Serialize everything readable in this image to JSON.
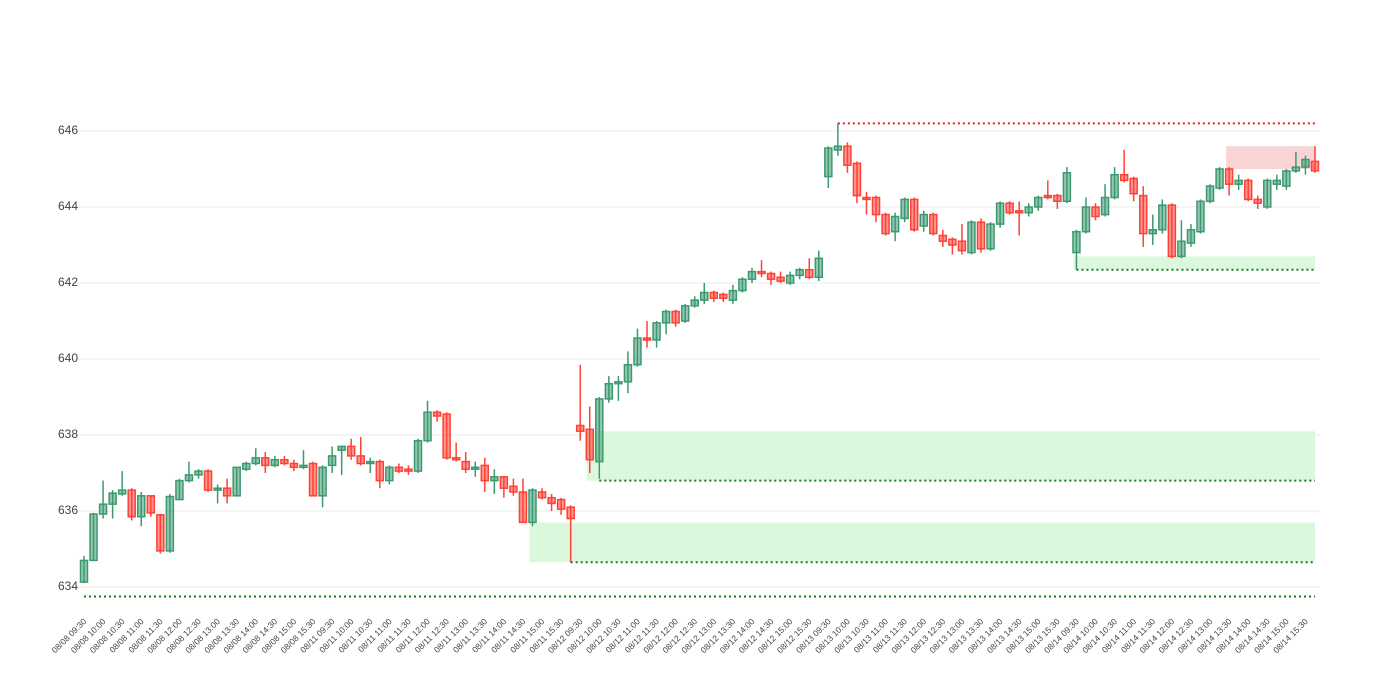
{
  "chart_data": {
    "type": "candlestick",
    "increasing_color": "#3d9970",
    "decreasing_color": "#ff4136",
    "grid": true,
    "ylim": [
      633.3,
      646.8
    ],
    "yticks": [
      634,
      636,
      638,
      640,
      642,
      644,
      646
    ],
    "categories": [
      "08/08 09:30",
      null,
      "08/08 10:00",
      null,
      "08/08 10:30",
      null,
      "08/08 11:00",
      null,
      "08/08 11:30",
      null,
      "08/08 12:00",
      null,
      "08/08 12:30",
      null,
      "08/08 13:00",
      null,
      "08/08 13:30",
      null,
      "08/08 14:00",
      null,
      "08/08 14:30",
      null,
      "08/08 15:00",
      null,
      "08/08 15:30",
      null,
      "08/11 09:30",
      null,
      "08/11 10:00",
      null,
      "08/11 10:30",
      null,
      "08/11 11:00",
      null,
      "08/11 11:30",
      null,
      "08/11 12:00",
      null,
      "08/11 12:30",
      null,
      "08/11 13:00",
      null,
      "08/11 13:30",
      null,
      "08/11 14:00",
      null,
      "08/11 14:30",
      null,
      "08/11 15:00",
      null,
      "08/11 15:30",
      null,
      "08/12 09:30",
      null,
      "08/12 10:00",
      null,
      "08/12 10:30",
      null,
      "08/12 11:00",
      null,
      "08/12 11:30",
      null,
      "08/12 12:00",
      null,
      "08/12 12:30",
      null,
      "08/12 13:00",
      null,
      "08/12 13:30",
      null,
      "08/12 14:00",
      null,
      "08/12 14:30",
      null,
      "08/12 15:00",
      null,
      "08/12 15:30",
      null,
      "08/13 09:30",
      null,
      "08/13 10:00",
      null,
      "08/13 10:30",
      null,
      "08/13 11:00",
      null,
      "08/13 11:30",
      null,
      "08/13 12:00",
      null,
      "08/13 12:30",
      null,
      "08/13 13:00",
      null,
      "08/13 13:30",
      null,
      "08/13 14:00",
      null,
      "08/13 14:30",
      null,
      "08/13 15:00",
      null,
      "08/13 15:30",
      null,
      "08/14 09:30",
      null,
      "08/14 10:00",
      null,
      "08/14 10:30",
      null,
      "08/14 11:00",
      null,
      "08/14 11:30",
      null,
      "08/14 12:00",
      null,
      "08/14 12:30",
      null,
      "08/14 13:00",
      null,
      "08/14 13:30",
      null,
      "08/14 14:00",
      null,
      "08/14 14:30",
      null,
      "08/14 15:00",
      null,
      "08/14 15:30",
      null
    ],
    "open": [
      634.13,
      634.7,
      635.92,
      636.18,
      636.45,
      636.55,
      635.85,
      636.4,
      635.9,
      634.95,
      636.3,
      636.8,
      636.95,
      637.05,
      636.55,
      636.6,
      636.4,
      637.1,
      637.25,
      637.4,
      637.2,
      637.35,
      637.25,
      637.15,
      637.25,
      636.4,
      637.2,
      637.6,
      637.7,
      637.45,
      637.25,
      637.3,
      636.8,
      637.15,
      637.1,
      637.05,
      637.85,
      638.6,
      638.55,
      637.4,
      637.3,
      637.1,
      637.2,
      636.8,
      636.9,
      636.65,
      636.5,
      635.7,
      636.5,
      636.35,
      636.3,
      636.1,
      638.25,
      638.15,
      637.3,
      638.95,
      639.35,
      639.4,
      639.85,
      640.55,
      640.5,
      640.95,
      641.25,
      641.0,
      641.4,
      641.55,
      641.75,
      641.7,
      641.55,
      641.8,
      642.1,
      642.3,
      642.25,
      642.15,
      642.0,
      642.2,
      642.35,
      642.15,
      644.8,
      645.5,
      645.6,
      645.15,
      644.25,
      644.25,
      643.8,
      643.35,
      643.7,
      644.2,
      643.5,
      643.8,
      643.25,
      643.15,
      643.1,
      642.8,
      643.6,
      642.9,
      643.55,
      644.1,
      643.9,
      643.85,
      644.0,
      644.3,
      644.3,
      644.15,
      642.8,
      643.35,
      644.0,
      643.8,
      644.25,
      644.85,
      644.75,
      644.3,
      643.3,
      643.4,
      644.05,
      642.7,
      643.05,
      643.35,
      644.15,
      644.5,
      645.0,
      644.6,
      644.7,
      644.2,
      644.0,
      644.6,
      644.55,
      644.95,
      645.05,
      645.2
    ],
    "high": [
      634.82,
      635.95,
      636.8,
      636.55,
      637.05,
      636.6,
      636.5,
      636.4,
      635.92,
      636.45,
      636.85,
      637.3,
      637.1,
      637.1,
      636.7,
      636.85,
      637.15,
      637.3,
      637.65,
      637.55,
      637.45,
      637.45,
      637.35,
      637.6,
      637.3,
      637.2,
      637.7,
      637.7,
      637.9,
      637.95,
      637.4,
      637.35,
      637.2,
      637.25,
      637.2,
      637.9,
      638.9,
      638.65,
      638.6,
      637.8,
      637.55,
      637.3,
      637.4,
      637.1,
      636.9,
      636.85,
      636.85,
      636.6,
      636.6,
      636.45,
      636.35,
      636.15,
      639.85,
      638.75,
      639.0,
      639.55,
      639.55,
      640.2,
      640.8,
      641.0,
      641.0,
      641.3,
      641.3,
      641.45,
      641.65,
      642.0,
      641.8,
      641.75,
      641.95,
      642.15,
      642.4,
      642.6,
      642.3,
      642.3,
      642.3,
      642.4,
      642.65,
      642.85,
      645.6,
      646.2,
      645.7,
      645.2,
      644.4,
      644.3,
      643.85,
      643.85,
      644.25,
      644.25,
      643.9,
      643.85,
      643.4,
      643.2,
      643.55,
      643.65,
      643.7,
      643.6,
      644.15,
      644.15,
      644.15,
      644.1,
      644.3,
      644.7,
      644.35,
      645.05,
      643.4,
      644.25,
      644.1,
      644.6,
      645.05,
      645.5,
      644.8,
      644.55,
      643.8,
      644.2,
      644.1,
      643.65,
      643.55,
      644.2,
      644.6,
      645.05,
      645.05,
      644.85,
      644.75,
      644.3,
      644.75,
      644.85,
      645.0,
      645.45,
      645.35,
      645.6
    ],
    "low": [
      634.1,
      634.68,
      635.8,
      635.8,
      636.4,
      635.75,
      635.6,
      635.85,
      634.88,
      634.9,
      636.3,
      636.75,
      636.85,
      636.5,
      636.2,
      636.2,
      636.4,
      637.05,
      637.2,
      637.0,
      637.15,
      637.2,
      637.05,
      637.1,
      636.4,
      636.1,
      637.0,
      636.95,
      637.35,
      637.2,
      637.0,
      636.6,
      636.7,
      637.0,
      636.95,
      637.0,
      637.8,
      638.35,
      637.35,
      637.3,
      637.0,
      636.9,
      636.5,
      636.45,
      636.35,
      636.4,
      635.7,
      635.6,
      636.3,
      636.0,
      635.9,
      634.65,
      637.85,
      637.0,
      636.85,
      638.85,
      638.9,
      639.1,
      639.8,
      640.3,
      640.3,
      640.65,
      640.85,
      640.95,
      641.35,
      641.45,
      641.5,
      641.5,
      641.45,
      641.75,
      642.0,
      642.15,
      641.95,
      642.0,
      641.95,
      642.1,
      642.1,
      642.05,
      644.5,
      645.35,
      644.9,
      644.1,
      643.8,
      643.6,
      643.25,
      643.1,
      643.6,
      643.35,
      643.35,
      643.25,
      642.95,
      642.75,
      642.75,
      642.75,
      642.8,
      642.85,
      643.45,
      643.8,
      643.25,
      643.75,
      643.9,
      644.2,
      643.95,
      644.1,
      642.35,
      643.3,
      643.65,
      643.75,
      644.2,
      644.65,
      644.15,
      642.95,
      643.0,
      643.3,
      642.65,
      642.65,
      642.95,
      643.3,
      644.1,
      644.45,
      644.3,
      644.45,
      644.15,
      643.95,
      643.95,
      644.45,
      644.45,
      644.9,
      644.85,
      644.9
    ],
    "close": [
      634.7,
      635.92,
      636.18,
      636.47,
      636.55,
      635.85,
      636.4,
      635.95,
      634.95,
      636.38,
      636.8,
      636.95,
      637.05,
      636.55,
      636.6,
      636.4,
      637.15,
      637.25,
      637.4,
      637.2,
      637.35,
      637.25,
      637.15,
      637.2,
      636.4,
      637.15,
      637.45,
      637.7,
      637.45,
      637.25,
      637.3,
      636.8,
      637.15,
      637.05,
      637.05,
      637.85,
      638.6,
      638.5,
      637.4,
      637.35,
      637.1,
      637.15,
      636.8,
      636.9,
      636.6,
      636.5,
      635.7,
      636.55,
      636.35,
      636.2,
      636.05,
      635.8,
      638.1,
      637.35,
      638.95,
      639.35,
      639.4,
      639.85,
      640.55,
      640.5,
      640.95,
      641.25,
      640.95,
      641.4,
      641.55,
      641.75,
      641.6,
      641.6,
      641.8,
      642.1,
      642.3,
      642.25,
      642.1,
      642.05,
      642.2,
      642.35,
      642.15,
      642.65,
      645.55,
      645.6,
      645.1,
      644.3,
      644.2,
      643.8,
      643.3,
      643.75,
      644.2,
      643.4,
      643.8,
      643.3,
      643.1,
      643.0,
      642.85,
      643.6,
      642.9,
      643.55,
      644.1,
      643.85,
      643.85,
      644.0,
      644.25,
      644.25,
      644.15,
      644.9,
      643.35,
      644.0,
      643.75,
      644.25,
      644.85,
      644.7,
      644.35,
      643.3,
      643.4,
      644.05,
      642.7,
      643.1,
      643.4,
      644.15,
      644.55,
      645.0,
      644.6,
      644.7,
      644.2,
      644.1,
      644.7,
      644.7,
      644.95,
      645.05,
      645.25,
      644.95
    ],
    "zones": [
      {
        "y0": 645.0,
        "y1": 645.6,
        "start": 120,
        "color": "#f8d4d4"
      },
      {
        "y0": 642.35,
        "y1": 642.7,
        "start": 104,
        "color": "#dcf8dc"
      },
      {
        "y0": 636.8,
        "y1": 638.1,
        "start": 53,
        "color": "#dcf8dc"
      },
      {
        "y0": 634.65,
        "y1": 635.7,
        "start": 47,
        "color": "#dcf8dc"
      }
    ],
    "levels": [
      {
        "y": 646.2,
        "start": 79,
        "color": "#d62728"
      },
      {
        "y": 642.35,
        "start": 104,
        "color": "#1f7a1f"
      },
      {
        "y": 636.8,
        "start": 54,
        "color": "#1f7a1f"
      },
      {
        "y": 634.65,
        "start": 51,
        "color": "#1f7a1f"
      },
      {
        "y": 633.75,
        "start": 0,
        "color": "#1f7a1f"
      }
    ]
  }
}
